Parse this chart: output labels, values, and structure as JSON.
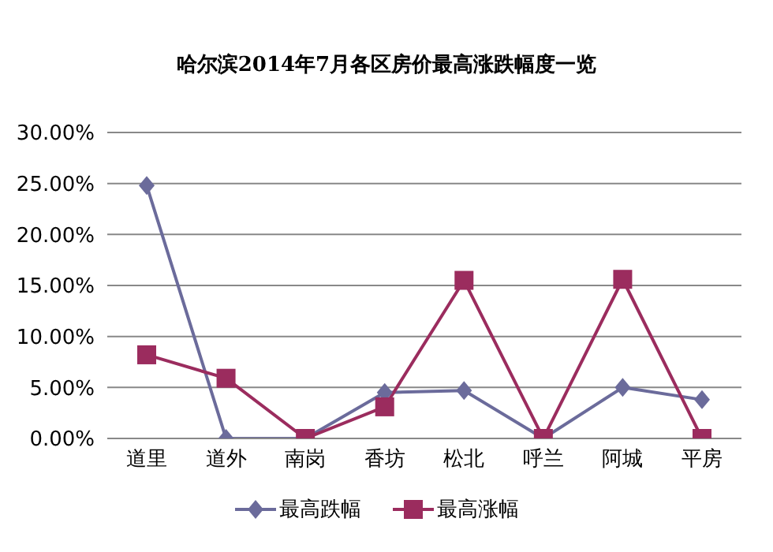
{
  "chart_data": {
    "type": "line",
    "title": "哈尔滨2014年7月各区房价最高涨跌幅度一览",
    "categories": [
      "道里",
      "道外",
      "南岗",
      "香坊",
      "松北",
      "呼兰",
      "阿城",
      "平房"
    ],
    "series": [
      {
        "name": "最高跌幅",
        "color": "#6b6b9b",
        "marker": "diamond",
        "values": [
          24.8,
          0,
          0,
          4.5,
          4.7,
          0,
          5.0,
          3.8
        ]
      },
      {
        "name": "最高涨幅",
        "color": "#9b2c5e",
        "marker": "square",
        "values": [
          8.2,
          5.9,
          0,
          3.1,
          15.5,
          0,
          15.6,
          0
        ]
      }
    ],
    "ylim": [
      0,
      30
    ],
    "yticks": [
      {
        "value": 0,
        "label": "0.00%"
      },
      {
        "value": 5,
        "label": "5.00%"
      },
      {
        "value": 10,
        "label": "10.00%"
      },
      {
        "value": 15,
        "label": "15.00%"
      },
      {
        "value": 20,
        "label": "20.00%"
      },
      {
        "value": 25,
        "label": "25.00%"
      },
      {
        "value": 30,
        "label": "30.00%"
      }
    ],
    "grid": "y",
    "legend": "bottom"
  }
}
